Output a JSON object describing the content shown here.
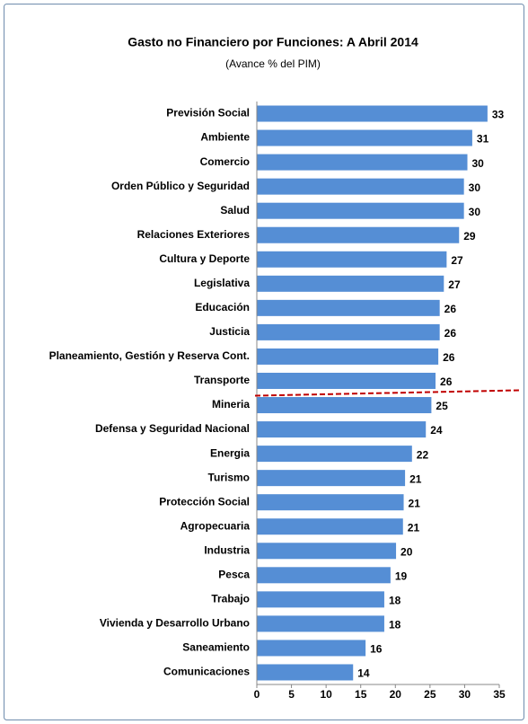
{
  "chart_data": {
    "type": "barh",
    "title": "Gasto no Financiero por Funciones: A Abril 2014",
    "subtitle": "(Avance % del PIM)",
    "categories": [
      "Previsión Social",
      "Ambiente",
      "Comercio",
      "Orden Público y Seguridad",
      "Salud",
      "Relaciones Exteriores",
      "Cultura y Deporte",
      "Legislativa",
      "Educación",
      "Justicia",
      "Planeamiento, Gestión y Reserva Cont.",
      "Transporte",
      "Mineria",
      "Defensa y Seguridad Nacional",
      "Energia",
      "Turismo",
      "Protección Social",
      "Agropecuaria",
      "Industria",
      "Pesca",
      "Trabajo",
      "Vivienda y Desarrollo Urbano",
      "Saneamiento",
      "Comunicaciones"
    ],
    "values": [
      33.3,
      31.1,
      30.4,
      29.9,
      29.9,
      29.2,
      27.4,
      27.0,
      26.4,
      26.4,
      26.2,
      25.8,
      25.2,
      24.4,
      22.4,
      21.4,
      21.2,
      21.1,
      20.1,
      19.3,
      18.4,
      18.4,
      15.7,
      13.9
    ],
    "value_labels": [
      "33",
      "31",
      "30",
      "30",
      "30",
      "29",
      "27",
      "27",
      "26",
      "26",
      "26",
      "26",
      "25",
      "24",
      "22",
      "21",
      "21",
      "21",
      "20",
      "19",
      "18",
      "18",
      "16",
      "14"
    ],
    "color": "#558ed5",
    "xlim": [
      0,
      35
    ],
    "xticks": [
      0,
      5,
      10,
      15,
      20,
      25,
      30,
      35
    ]
  }
}
